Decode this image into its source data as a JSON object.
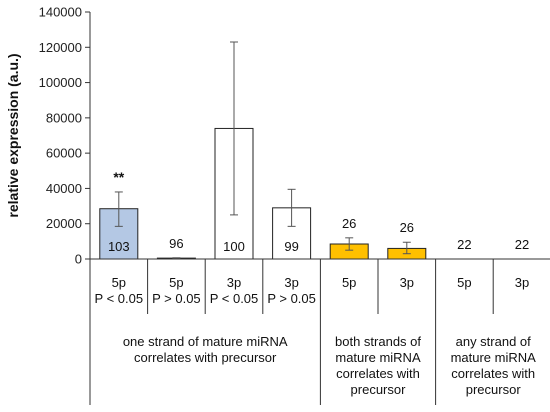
{
  "chart_data": {
    "type": "bar",
    "title": "",
    "xlabel": "",
    "ylabel": "relative expression (a.u.)",
    "ylim": [
      0,
      140000
    ],
    "yticks": [
      0,
      20000,
      40000,
      60000,
      80000,
      100000,
      120000,
      140000
    ],
    "bars": [
      {
        "strand": "5p",
        "pcond": "P < 0.05",
        "value": 28500,
        "err_low": 18500,
        "err_high": 38000,
        "inner_label": "103",
        "top_label": "**",
        "color": "#b4c8e4"
      },
      {
        "strand": "5p",
        "pcond": "P > 0.05",
        "value": 500,
        "err_low": 300,
        "err_high": 700,
        "inner_label": "",
        "top_label": "96",
        "color": "#ffffff"
      },
      {
        "strand": "3p",
        "pcond": "P < 0.05",
        "value": 74000,
        "err_low": 25000,
        "err_high": 123000,
        "inner_label": "100",
        "top_label": "",
        "color": "#ffffff"
      },
      {
        "strand": "3p",
        "pcond": "P > 0.05",
        "value": 29000,
        "err_low": 18500,
        "err_high": 39500,
        "inner_label": "99",
        "top_label": "",
        "color": "#ffffff"
      },
      {
        "strand": "5p",
        "pcond": "",
        "value": 8500,
        "err_low": 5000,
        "err_high": 12000,
        "inner_label": "",
        "top_label": "26",
        "color": "#ffc000"
      },
      {
        "strand": "3p",
        "pcond": "",
        "value": 6000,
        "err_low": 3000,
        "err_high": 9500,
        "inner_label": "",
        "top_label": "26",
        "color": "#ffc000"
      },
      {
        "strand": "5p",
        "pcond": "",
        "value": 0,
        "err_low": null,
        "err_high": null,
        "inner_label": "",
        "top_label": "22",
        "color": "#ffffff"
      },
      {
        "strand": "3p",
        "pcond": "",
        "value": 0,
        "err_low": null,
        "err_high": null,
        "inner_label": "",
        "top_label": "22",
        "color": "#ffffff"
      }
    ],
    "groups": [
      {
        "label_lines": [
          "one strand of mature miRNA",
          "correlates with precursor"
        ],
        "start": 0,
        "end": 3
      },
      {
        "label_lines": [
          "both strands of",
          "mature miRNA",
          "correlates with",
          "precursor"
        ],
        "start": 4,
        "end": 5
      },
      {
        "label_lines": [
          "any strand of",
          "mature miRNA",
          "correlates with",
          "precursor"
        ],
        "start": 6,
        "end": 7
      }
    ],
    "colors": {
      "axis": "#333333",
      "bar_stroke": "#222222",
      "error": "#555555"
    }
  }
}
